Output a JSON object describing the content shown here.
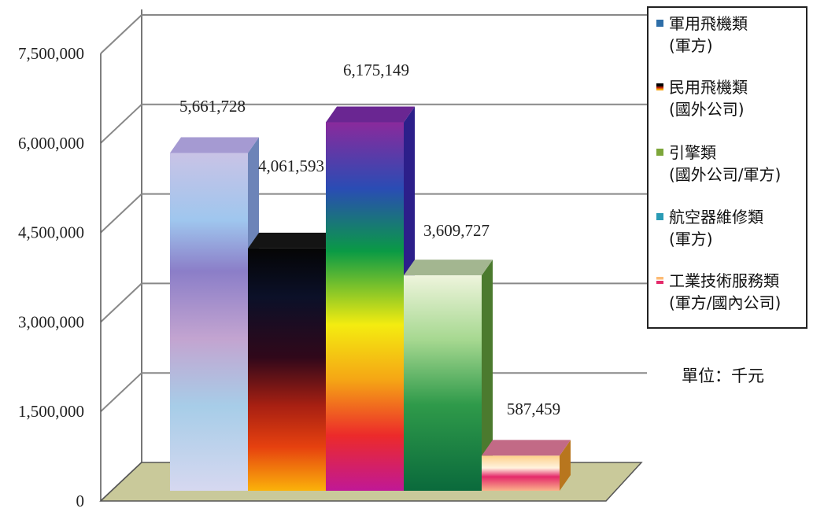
{
  "chart_data": {
    "type": "bar",
    "categories": [
      "軍用飛機類(軍方)",
      "民用飛機類(國外公司)",
      "引擎類(國外公司/軍方)",
      "航空器維修類(軍方)",
      "工業技術服務類(軍方/國內公司)"
    ],
    "values": [
      5661728,
      4061593,
      6175149,
      3609727,
      587459
    ],
    "value_labels": [
      "5,661,728",
      "4,061,593",
      "6,175,149",
      "3,609,727",
      "587,459"
    ],
    "yticks": [
      "0",
      "1,500,000",
      "3,000,000",
      "4,500,000",
      "6,000,000",
      "7,500,000"
    ],
    "ylim": [
      0,
      7500000
    ],
    "grid": true,
    "legend_position": "top-right",
    "legend": [
      {
        "line1": "軍用飛機類",
        "line2": "(軍方)",
        "color": "#2e6ea8"
      },
      {
        "line1": "民用飛機類",
        "line2": "(國外公司)",
        "color": "#8a1a0a"
      },
      {
        "line1": "引擎類",
        "line2": "(國外公司/軍方)",
        "color": "#7da63a"
      },
      {
        "line1": "航空器維修類",
        "line2": "(軍方)",
        "color": "#2a9bb5"
      },
      {
        "line1": "工業技術服務類",
        "line2": "(軍方/國內公司)",
        "color": "#e84a6a"
      }
    ],
    "unit_note": "單位：千元"
  }
}
